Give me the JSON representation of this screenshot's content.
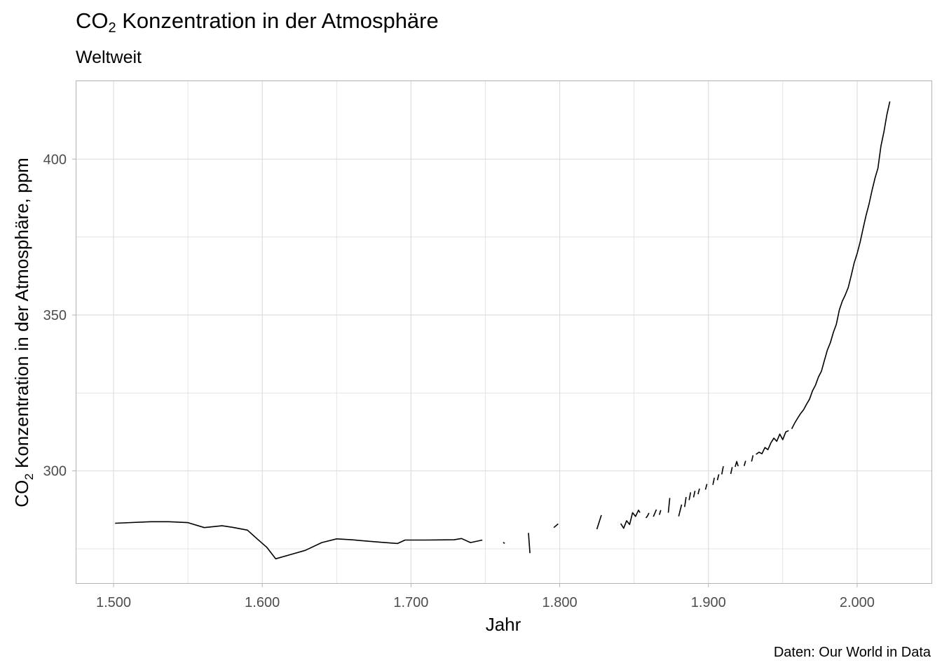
{
  "header": {
    "title": "CO",
    "title_subscript": "2",
    "title_rest": " Konzentration in der Atmosphäre",
    "subtitle": "Weltweit"
  },
  "caption": "Daten: Our World in Data",
  "chart_data": {
    "type": "line",
    "title": "CO₂ Konzentration in der Atmosphäre",
    "subtitle": "Weltweit",
    "xlabel": "Jahr",
    "ylabel": "CO₂ Konzentration in der Atmosphäre, ppm",
    "ylabel_parts": [
      "CO",
      "2",
      " Konzentration in der Atmosphäre, ppm"
    ],
    "xlim": [
      1475,
      2050
    ],
    "ylim": [
      264,
      425
    ],
    "x_ticks": [
      1500,
      1600,
      1700,
      1800,
      1900,
      2000
    ],
    "x_tick_labels": [
      "1.500",
      "1.600",
      "1.700",
      "1.800",
      "1.900",
      "2.000"
    ],
    "x_minor_ticks": [
      1550,
      1650,
      1750,
      1850,
      1950
    ],
    "y_ticks": [
      300,
      350,
      400
    ],
    "y_tick_labels": [
      "300",
      "350",
      "400"
    ],
    "y_minor_ticks": [
      275,
      325,
      375
    ],
    "grid": true,
    "line_color": "#000000",
    "grid_color": "#dedede",
    "panel_border_color": "#b3b3b3",
    "series": [
      {
        "segments": [
          [
            [
              1501,
              283.2
            ],
            [
              1525,
              283.7
            ],
            [
              1537,
              283.7
            ],
            [
              1550,
              283.4
            ],
            [
              1561,
              281.8
            ],
            [
              1573,
              282.4
            ],
            [
              1580,
              281.9
            ],
            [
              1590,
              281.0
            ],
            [
              1597,
              278.0
            ],
            [
              1603,
              275.5
            ],
            [
              1609,
              271.8
            ],
            [
              1620,
              273.3
            ],
            [
              1629,
              274.5
            ],
            [
              1640,
              277.0
            ],
            [
              1650,
              278.2
            ],
            [
              1660,
              277.9
            ],
            [
              1670,
              277.5
            ],
            [
              1680,
              277.1
            ],
            [
              1691,
              276.7
            ],
            [
              1696,
              277.8
            ],
            [
              1710,
              277.8
            ],
            [
              1729,
              277.9
            ],
            [
              1734,
              278.3
            ],
            [
              1740,
              277.0
            ],
            [
              1748,
              277.8
            ]
          ],
          [
            [
              1762,
              277.1
            ],
            [
              1763,
              276.7
            ]
          ],
          [
            [
              1779,
              280.1
            ],
            [
              1780,
              273.6
            ]
          ],
          [
            [
              1796,
              281.8
            ],
            [
              1799,
              283.0
            ]
          ],
          [
            [
              1825,
              281.3
            ],
            [
              1828,
              285.8
            ]
          ],
          [
            [
              1841,
              283.1
            ],
            [
              1843,
              281.6
            ],
            [
              1845,
              284.0
            ],
            [
              1847,
              282.8
            ],
            [
              1849,
              286.6
            ],
            [
              1851,
              285.4
            ],
            [
              1853,
              287.4
            ],
            [
              1854,
              286.6
            ]
          ],
          [
            [
              1858,
              284.9
            ],
            [
              1859,
              285.5
            ],
            [
              1860,
              286.5
            ]
          ],
          [
            [
              1863,
              285.3
            ],
            [
              1865,
              287.6
            ]
          ],
          [
            [
              1867,
              285.9
            ],
            [
              1868,
              287.4
            ]
          ],
          [
            [
              1873,
              286.6
            ],
            [
              1874,
              291.3
            ]
          ],
          [
            [
              1880,
              285.4
            ],
            [
              1882,
              289.2
            ]
          ],
          [
            [
              1884,
              288.4
            ],
            [
              1885,
              291.6
            ]
          ],
          [
            [
              1887,
              290.6
            ],
            [
              1888,
              293.1
            ]
          ],
          [
            [
              1890,
              291.5
            ],
            [
              1891,
              293.6
            ]
          ],
          [
            [
              1893,
              292.5
            ],
            [
              1894,
              294.3
            ]
          ],
          [
            [
              1898,
              294.0
            ],
            [
              1899,
              295.8
            ]
          ],
          [
            [
              1903,
              295.5
            ],
            [
              1904,
              297.8
            ]
          ],
          [
            [
              1906,
              297.0
            ],
            [
              1907,
              298.9
            ]
          ],
          [
            [
              1909,
              298.9
            ],
            [
              1910,
              301.5
            ]
          ],
          [
            [
              1915,
              299.0
            ],
            [
              1916,
              301.2
            ]
          ],
          [
            [
              1918,
              301.3
            ],
            [
              1919,
              303.0
            ],
            [
              1920,
              301.5
            ]
          ],
          [
            [
              1924,
              301.6
            ],
            [
              1925,
              303.2
            ]
          ],
          [
            [
              1929,
              303.0
            ],
            [
              1930,
              305.0
            ]
          ],
          [
            [
              1932,
              305.3
            ],
            [
              1934,
              306.0
            ],
            [
              1936,
              305.5
            ],
            [
              1938,
              307.5
            ],
            [
              1940,
              306.8
            ],
            [
              1942,
              309.0
            ],
            [
              1944,
              310.5
            ],
            [
              1946,
              309.5
            ],
            [
              1948,
              311.8
            ],
            [
              1950,
              310.0
            ],
            [
              1952,
              312.5
            ],
            [
              1954,
              312.9
            ]
          ],
          [
            [
              1956,
              313.5
            ],
            [
              1958,
              315.3
            ],
            [
              1960,
              316.9
            ],
            [
              1962,
              318.4
            ],
            [
              1964,
              319.6
            ],
            [
              1966,
              321.4
            ],
            [
              1968,
              323.0
            ],
            [
              1970,
              325.7
            ],
            [
              1972,
              327.5
            ],
            [
              1974,
              330.1
            ],
            [
              1976,
              332.0
            ],
            [
              1978,
              335.4
            ],
            [
              1980,
              338.8
            ],
            [
              1982,
              341.1
            ],
            [
              1984,
              344.4
            ],
            [
              1986,
              347.0
            ],
            [
              1988,
              351.6
            ],
            [
              1990,
              354.4
            ],
            [
              1992,
              356.4
            ],
            [
              1994,
              358.8
            ],
            [
              1996,
              362.6
            ],
            [
              1998,
              366.7
            ],
            [
              2000,
              369.7
            ],
            [
              2002,
              373.4
            ],
            [
              2004,
              377.7
            ],
            [
              2006,
              381.9
            ],
            [
              2008,
              385.6
            ],
            [
              2010,
              389.9
            ],
            [
              2012,
              393.9
            ],
            [
              2014,
              397.1
            ],
            [
              2016,
              404.2
            ],
            [
              2018,
              408.7
            ],
            [
              2020,
              414.2
            ],
            [
              2022,
              418.5
            ]
          ]
        ]
      }
    ]
  }
}
